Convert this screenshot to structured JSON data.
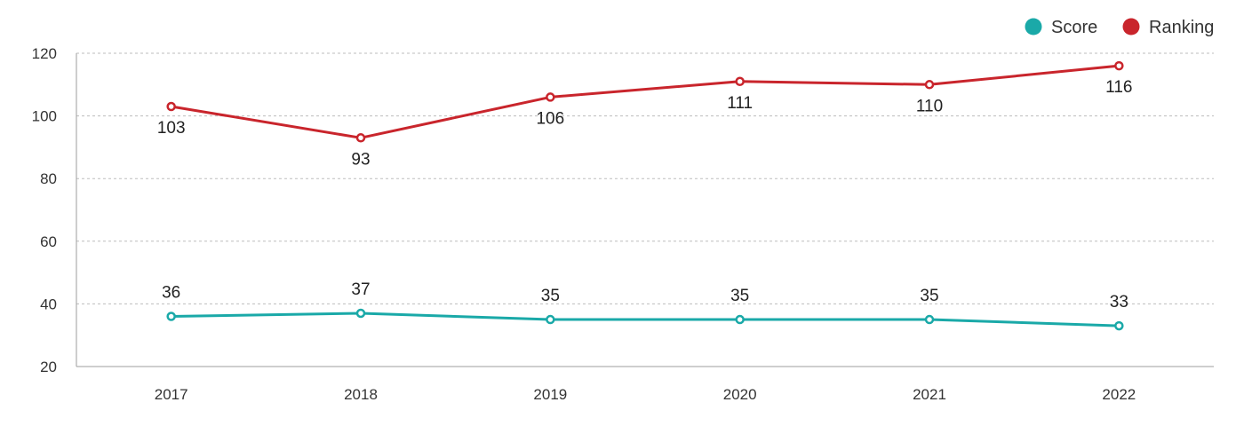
{
  "chart_data": {
    "type": "line",
    "categories": [
      "2017",
      "2018",
      "2019",
      "2020",
      "2021",
      "2022"
    ],
    "y_ticks": [
      "20",
      "40",
      "60",
      "80",
      "100",
      "120"
    ],
    "ylim": [
      20,
      120
    ],
    "grid": true,
    "legend_position": "top-right",
    "series": [
      {
        "name": "Score",
        "color": "#1aa9a8",
        "values": [
          36,
          37,
          35,
          35,
          35,
          33
        ],
        "labels": [
          "36",
          "37",
          "35",
          "35",
          "35",
          "33"
        ],
        "label_position": "above"
      },
      {
        "name": "Ranking",
        "color": "#c9252c",
        "values": [
          103,
          93,
          106,
          111,
          110,
          116
        ],
        "labels": [
          "103",
          "93",
          "106",
          "111",
          "110",
          "116"
        ],
        "label_position": "below"
      }
    ]
  }
}
